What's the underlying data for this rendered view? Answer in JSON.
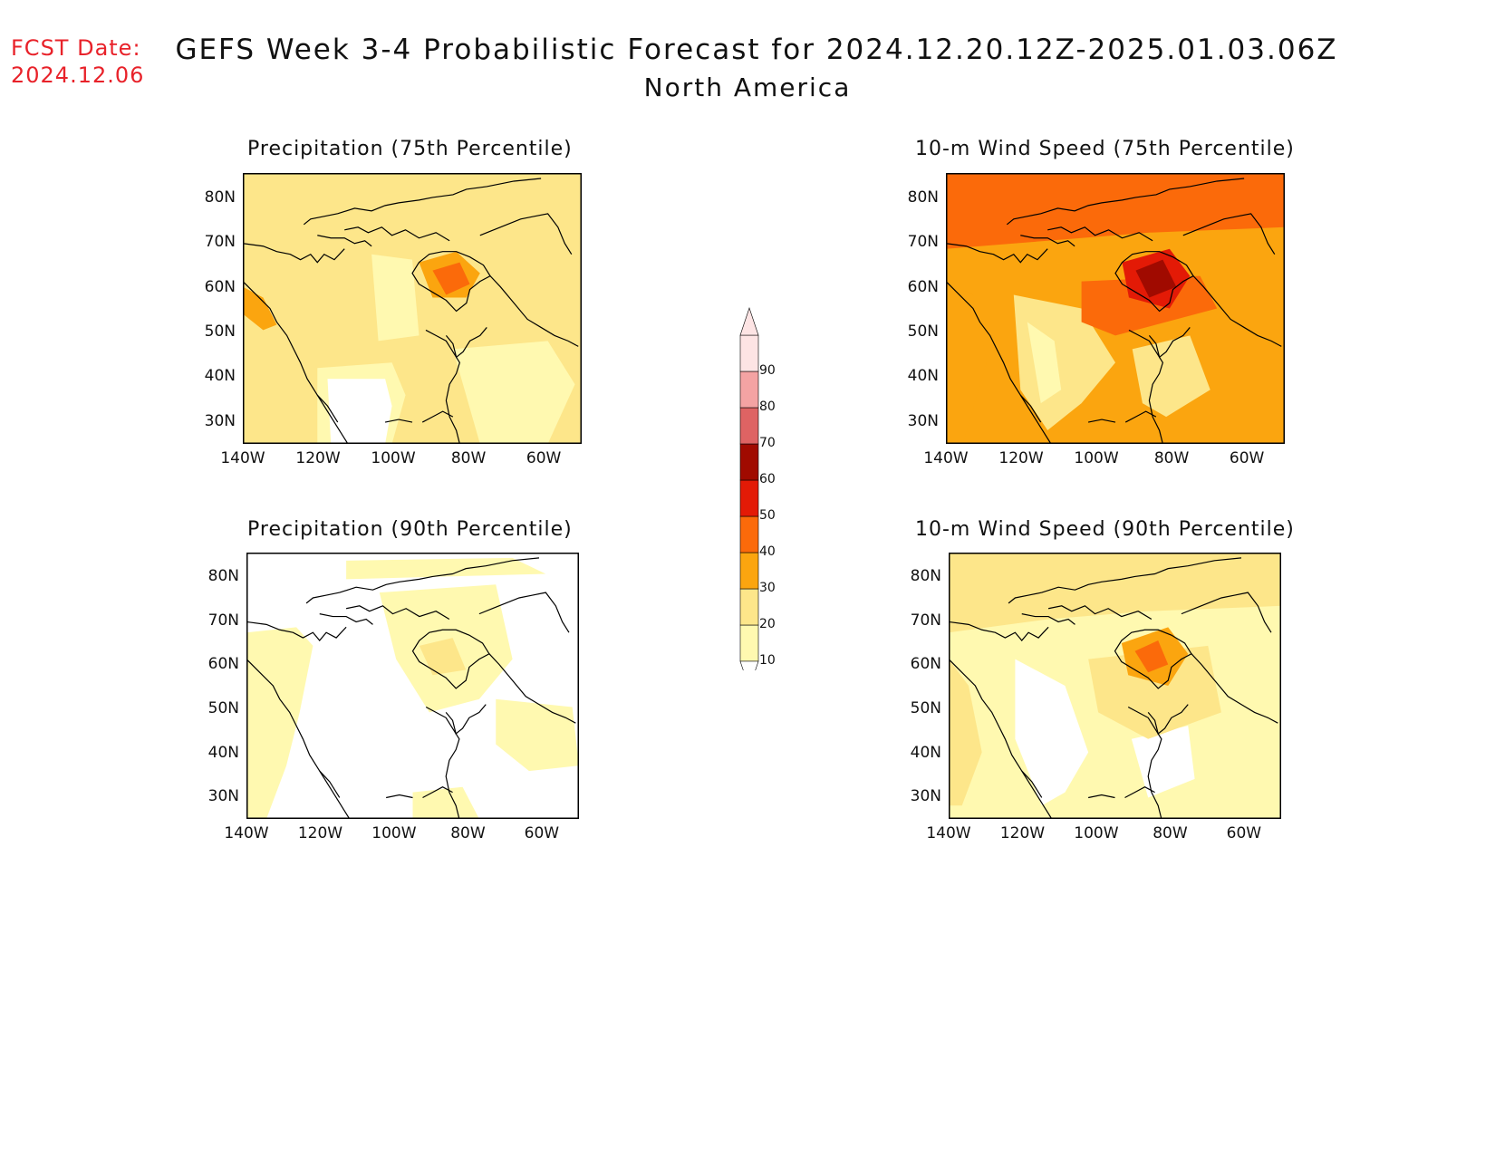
{
  "header": {
    "fcst_label": "FCST Date:",
    "fcst_date": "2024.12.06",
    "title": "GEFS Week 3-4 Probabilistic Forecast for 2024.12.20.12Z-2025.01.03.06Z",
    "region": "North America"
  },
  "panels": [
    {
      "title": "Precipitation (75th Percentile)",
      "field": "precip75"
    },
    {
      "title": "10-m Wind Speed (75th Percentile)",
      "field": "wind75"
    },
    {
      "title": "Precipitation (90th Percentile)",
      "field": "precip90"
    },
    {
      "title": "10-m Wind Speed (90th Percentile)",
      "field": "wind90"
    }
  ],
  "axes": {
    "lat_labels": [
      "80N",
      "70N",
      "60N",
      "50N",
      "40N",
      "30N"
    ],
    "lon_labels": [
      "140W",
      "120W",
      "100W",
      "80W",
      "60W"
    ]
  },
  "colorbar": {
    "levels": [
      "10",
      "20",
      "30",
      "40",
      "50",
      "60",
      "70",
      "80",
      "90"
    ],
    "colors": [
      "#fff9b0",
      "#fde68a",
      "#fba50f",
      "#fb6a0a",
      "#e31a06",
      "#a00a00",
      "#de6363",
      "#f4a3a3",
      "#fde4e4"
    ]
  },
  "colors": {
    "accent_red": "#e8222a",
    "coast": "#000000"
  }
}
